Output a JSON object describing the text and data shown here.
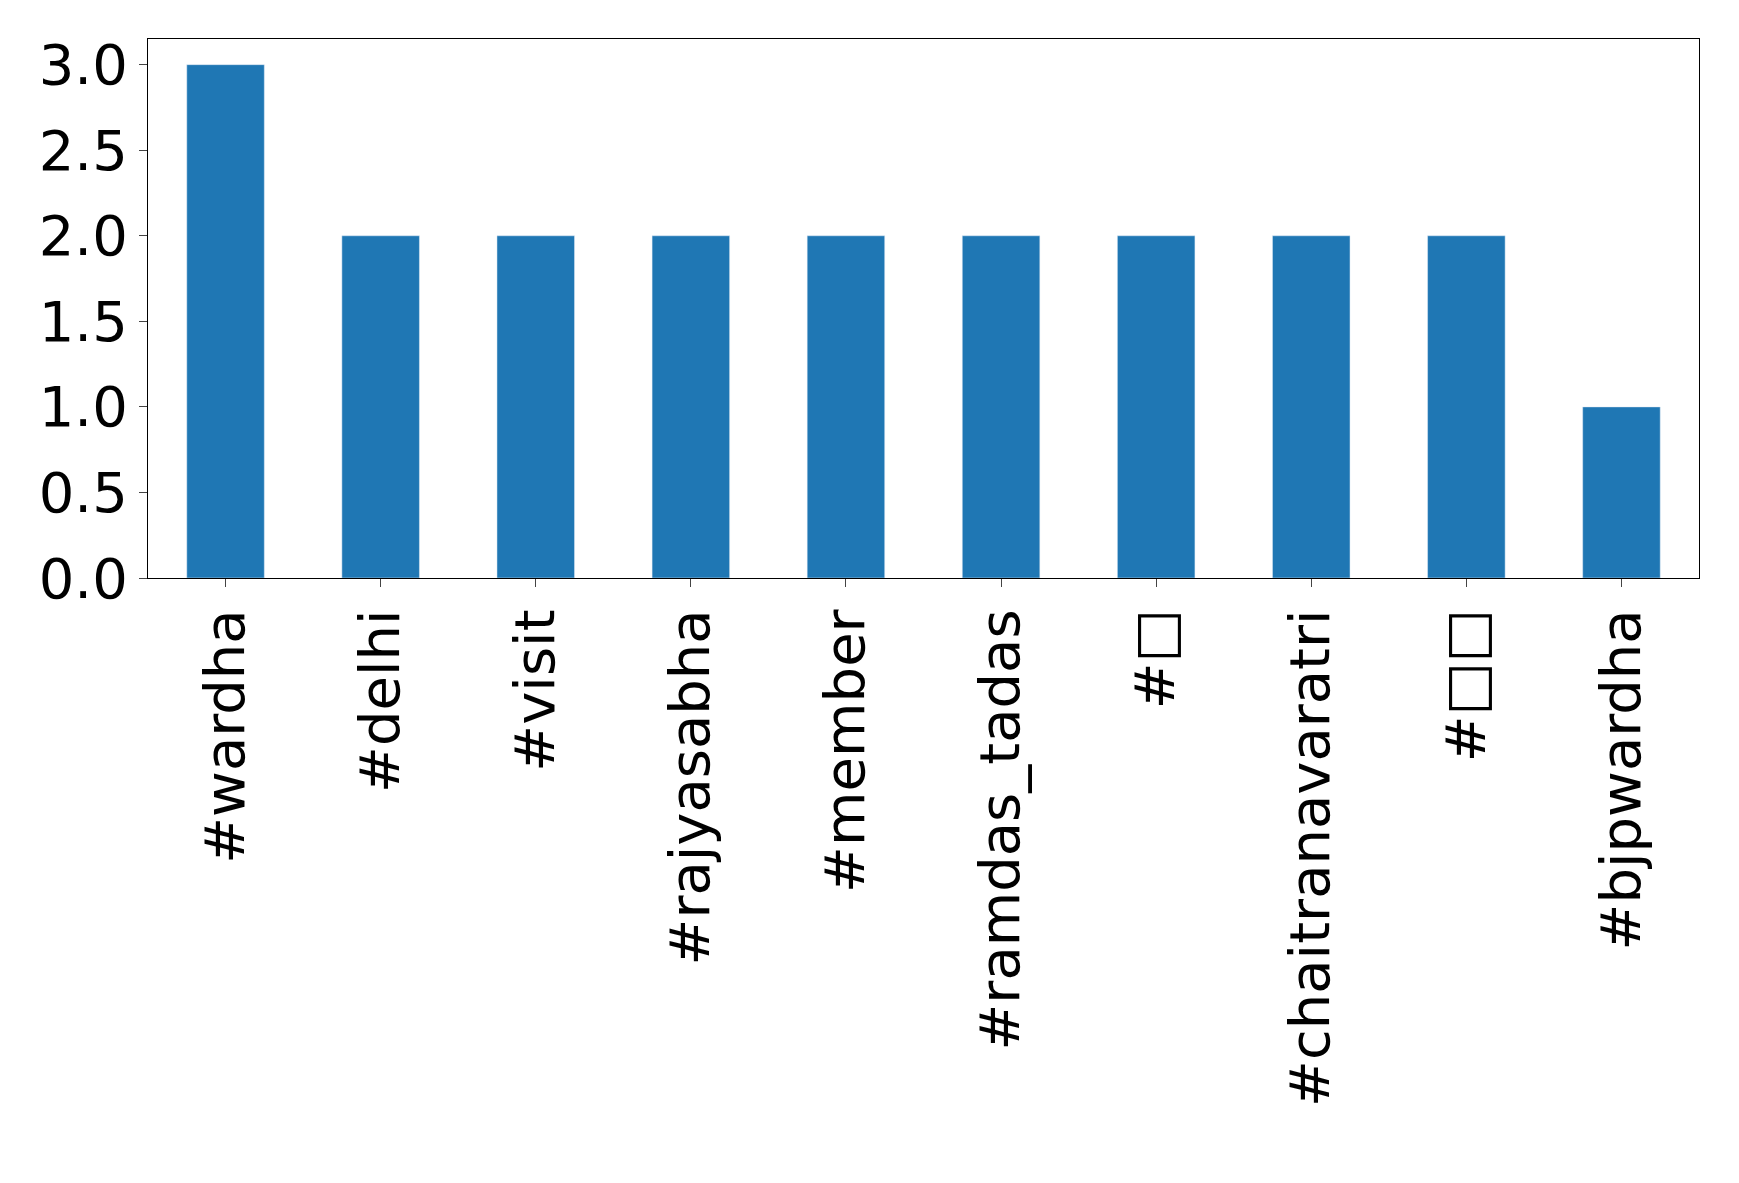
{
  "chart_data": {
    "type": "bar",
    "categories": [
      "#wardha",
      "#delhi",
      "#visit",
      "#rajyasabha",
      "#member",
      "#ramdas_tadas",
      "#□",
      "#chaitranavaratri",
      "#□□",
      "#bjpwardha"
    ],
    "values": [
      3,
      2,
      2,
      2,
      2,
      2,
      2,
      2,
      2,
      1
    ],
    "color": "#1f77b4",
    "ylim": [
      0,
      3.15
    ],
    "yticks": [
      {
        "value": 0,
        "label": "0.0"
      },
      {
        "value": 0.5,
        "label": "0.5"
      },
      {
        "value": 1,
        "label": "1.0"
      },
      {
        "value": 1.5,
        "label": "1.5"
      },
      {
        "value": 2,
        "label": "2.0"
      },
      {
        "value": 2.5,
        "label": "2.5"
      },
      {
        "value": 3,
        "label": "3.0"
      }
    ]
  }
}
